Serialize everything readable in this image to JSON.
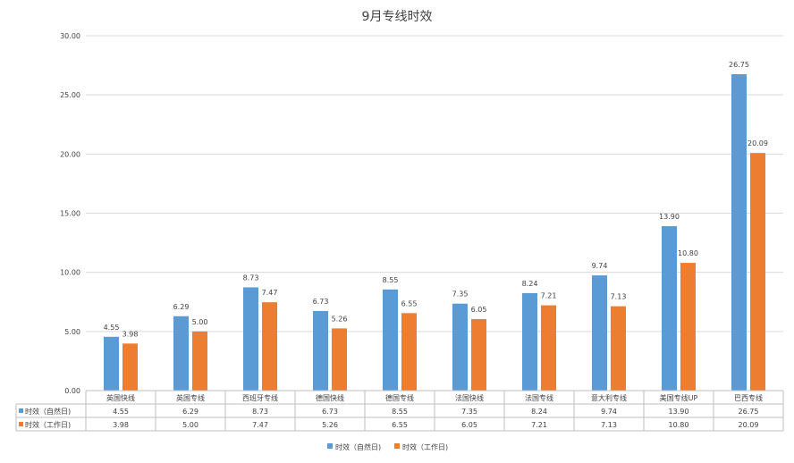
{
  "chart_data": {
    "type": "bar",
    "title": "9月专线时效",
    "categories": [
      "英国快线",
      "英国专线",
      "西班牙专线",
      "德国快线",
      "德国专线",
      "法国快线",
      "法国专线",
      "意大利专线",
      "美国专线UP",
      "巴西专线"
    ],
    "series": [
      {
        "name": "时效（自然日)",
        "color": "#5b9bd5",
        "values": [
          4.55,
          6.29,
          8.73,
          6.73,
          8.55,
          7.35,
          8.24,
          9.74,
          13.9,
          26.75
        ],
        "labels": [
          "4.55",
          "6.29",
          "8.73",
          "6.73",
          "8.55",
          "7.35",
          "8.24",
          "9.74",
          "13.90",
          "26.75"
        ]
      },
      {
        "name": "时效（工作日)",
        "color": "#ed7d31",
        "values": [
          3.98,
          5.0,
          7.47,
          5.26,
          6.55,
          6.05,
          7.21,
          7.13,
          10.8,
          20.09
        ],
        "labels": [
          "3.98",
          "5.00",
          "7.47",
          "5.26",
          "6.55",
          "6.05",
          "7.21",
          "7.13",
          "10.80",
          "20.09"
        ]
      }
    ],
    "ylim": [
      0,
      30
    ],
    "yticks": [
      "0.00",
      "5.00",
      "10.00",
      "15.00",
      "20.00",
      "25.00",
      "30.00"
    ],
    "ytick_values": [
      0,
      5,
      10,
      15,
      20,
      25,
      30
    ],
    "grid": true,
    "legend_position": "bottom",
    "data_table": true
  }
}
